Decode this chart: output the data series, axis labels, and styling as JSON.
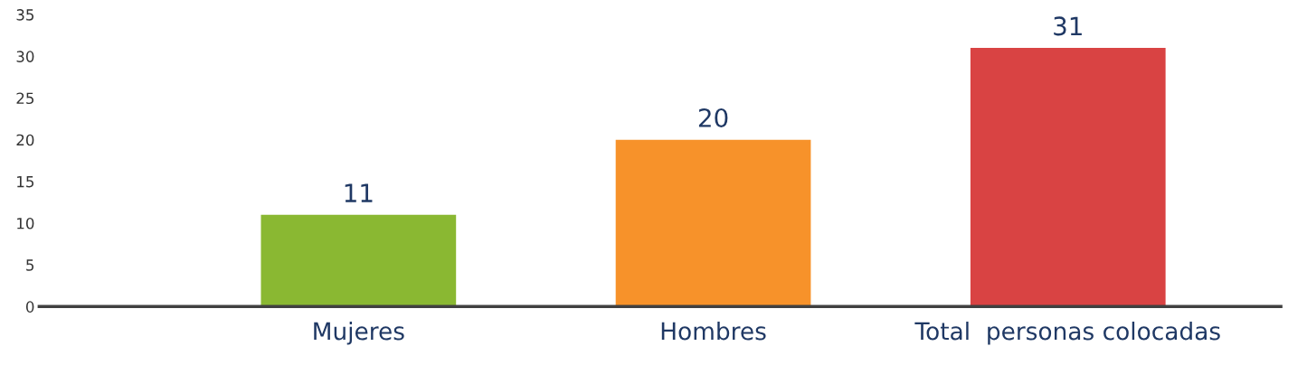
{
  "chart_data": {
    "type": "bar",
    "categories": [
      "Mujeres",
      "Hombres",
      "Total  personas colocadas"
    ],
    "values": [
      11,
      20,
      31
    ],
    "colors": [
      "#8ab832",
      "#f7922a",
      "#d94343"
    ],
    "ylim": [
      0,
      35
    ],
    "yticks": [
      0,
      5,
      10,
      15,
      20,
      25,
      30,
      35
    ],
    "data_labels": true,
    "grid": false
  }
}
